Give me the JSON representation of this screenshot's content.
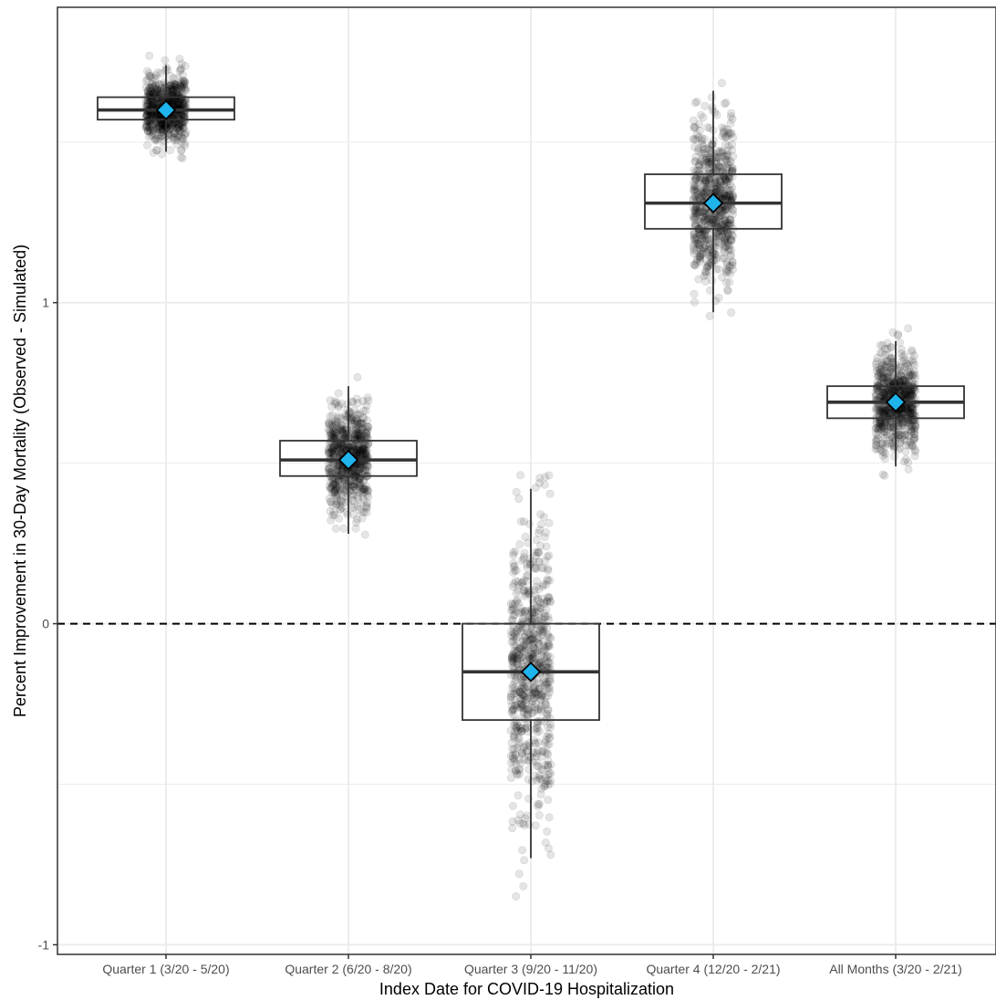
{
  "chart_data": {
    "type": "box",
    "title": "",
    "xlabel": "Index Date for COVID-19 Hospitalization",
    "ylabel": "Percent Improvement in 30-Day Mortality (Observed - Simulated)",
    "categories": [
      "Quarter 1 (3/20 - 5/20)",
      "Quarter 2 (6/20 - 8/20)",
      "Quarter 3 (9/20 - 11/20)",
      "Quarter 4 (12/20 - 2/21)",
      "All Months (3/20 - 2/21)"
    ],
    "y_ticks": [
      -1,
      0,
      1
    ],
    "y_tick_labels": [
      "-1",
      "0",
      "1"
    ],
    "ylim": [
      -1.03,
      1.92
    ],
    "grid": true,
    "reference_line": {
      "y": 0,
      "style": "dashed"
    },
    "boxes": [
      {
        "category": "Quarter 1 (3/20 - 5/20)",
        "whisker_low": 1.47,
        "q1": 1.57,
        "median": 1.6,
        "q3": 1.64,
        "whisker_high": 1.74,
        "mean": 1.6,
        "jitter_min": 1.44,
        "jitter_max": 1.77
      },
      {
        "category": "Quarter 2 (6/20 - 8/20)",
        "whisker_low": 0.28,
        "q1": 0.46,
        "median": 0.51,
        "q3": 0.57,
        "whisker_high": 0.74,
        "mean": 0.51,
        "jitter_min": 0.22,
        "jitter_max": 0.81
      },
      {
        "category": "Quarter 3 (9/20 - 11/20)",
        "whisker_low": -0.73,
        "q1": -0.3,
        "median": -0.15,
        "q3": 0.0,
        "whisker_high": 0.42,
        "mean": -0.15,
        "jitter_min": -0.88,
        "jitter_max": 0.5
      },
      {
        "category": "Quarter 4 (12/20 - 2/21)",
        "whisker_low": 0.97,
        "q1": 1.23,
        "median": 1.31,
        "q3": 1.4,
        "whisker_high": 1.66,
        "mean": 1.31,
        "jitter_min": 0.95,
        "jitter_max": 1.79
      },
      {
        "category": "All Months (3/20 - 2/21)",
        "whisker_low": 0.49,
        "q1": 0.64,
        "median": 0.69,
        "q3": 0.74,
        "whisker_high": 0.88,
        "mean": 0.69,
        "jitter_min": 0.37,
        "jitter_max": 0.92
      }
    ],
    "colors": {
      "mean_marker": "#1fb4ec",
      "points": "#000000",
      "box_stroke": "#333333",
      "grid": "#ebebeb",
      "panel_border": "#333333"
    }
  }
}
